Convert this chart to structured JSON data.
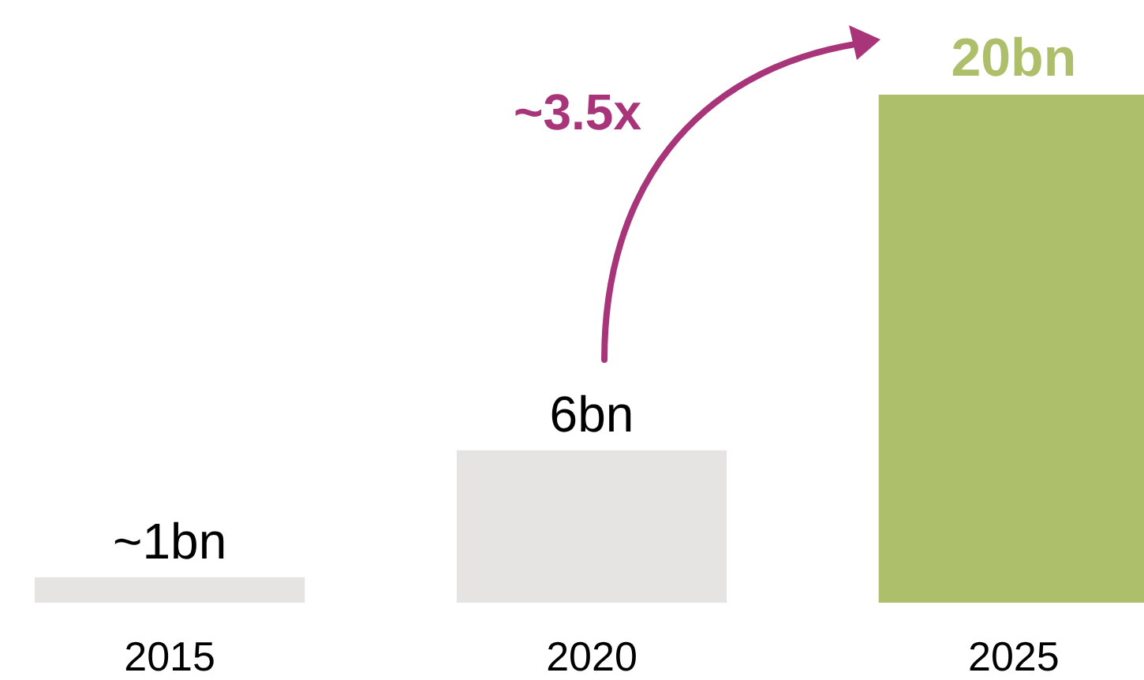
{
  "chart_data": {
    "type": "bar",
    "categories": [
      "2015",
      "2020",
      "2025"
    ],
    "values": [
      1,
      6,
      20
    ],
    "colors": [
      "#e6e4e2",
      "#e6e4e2",
      "#adbf6a"
    ],
    "value_labels": [
      "~1bn",
      "6bn",
      "20bn"
    ],
    "annotations": [
      "~3.5x"
    ]
  }
}
